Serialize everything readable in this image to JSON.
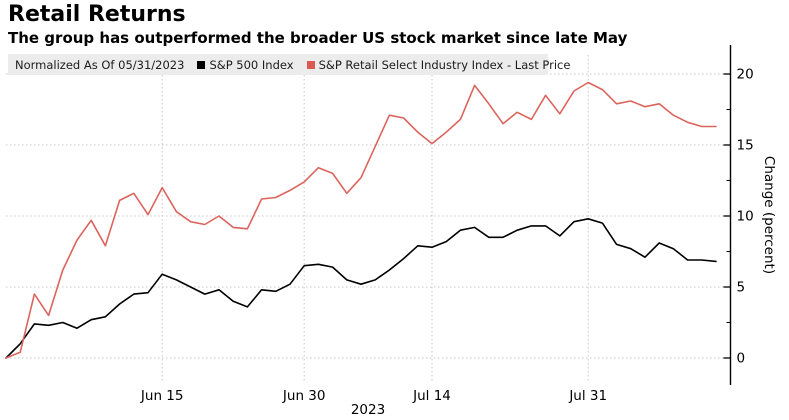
{
  "header": {
    "title": "Retail Returns",
    "subtitle": "The group has outperformed the broader US stock market since late May"
  },
  "legend": {
    "note": "Normalized As Of 05/31/2023",
    "items": [
      {
        "label": "S&P 500 Index",
        "color": "#000000"
      },
      {
        "label": "S&P Retail Select Industry Index - Last Price",
        "color": "#dc5a54"
      }
    ]
  },
  "chart_data": {
    "type": "line",
    "x": [
      "05/31",
      "06/01",
      "06/02",
      "06/05",
      "06/06",
      "06/07",
      "06/08",
      "06/09",
      "06/12",
      "06/13",
      "06/14",
      "06/15",
      "06/16",
      "06/20",
      "06/21",
      "06/22",
      "06/23",
      "06/26",
      "06/27",
      "06/28",
      "06/29",
      "06/30",
      "07/03",
      "07/05",
      "07/06",
      "07/07",
      "07/10",
      "07/11",
      "07/12",
      "07/13",
      "07/14",
      "07/17",
      "07/18",
      "07/19",
      "07/20",
      "07/21",
      "07/24",
      "07/25",
      "07/26",
      "07/27",
      "07/28",
      "07/31",
      "08/01",
      "08/02",
      "08/03",
      "08/04",
      "08/07",
      "08/08",
      "08/09",
      "08/10",
      "08/11"
    ],
    "series": [
      {
        "name": "S&P 500 Index",
        "color": "#000000",
        "values": [
          0.0,
          1.0,
          2.4,
          2.3,
          2.5,
          2.1,
          2.7,
          2.9,
          3.8,
          4.5,
          4.6,
          5.9,
          5.5,
          5.0,
          4.5,
          4.8,
          4.0,
          3.6,
          4.8,
          4.7,
          5.2,
          6.5,
          6.6,
          6.4,
          5.5,
          5.2,
          5.5,
          6.2,
          7.0,
          7.9,
          7.8,
          8.2,
          9.0,
          9.2,
          8.5,
          8.5,
          9.0,
          9.3,
          9.3,
          8.6,
          9.6,
          9.8,
          9.5,
          8.0,
          7.7,
          7.1,
          8.1,
          7.7,
          6.9,
          6.9,
          6.8
        ]
      },
      {
        "name": "S&P Retail Select Industry Index - Last Price",
        "color": "#dc645d",
        "values": [
          0.0,
          0.4,
          4.5,
          3.0,
          6.2,
          8.3,
          9.7,
          7.9,
          11.1,
          11.6,
          10.1,
          12.0,
          10.3,
          9.6,
          9.4,
          10.0,
          9.2,
          9.1,
          11.2,
          11.3,
          11.8,
          12.4,
          13.4,
          13.0,
          11.6,
          12.7,
          14.9,
          17.1,
          16.9,
          15.9,
          15.1,
          15.9,
          16.8,
          19.2,
          17.9,
          16.5,
          17.3,
          16.8,
          18.5,
          17.2,
          18.8,
          19.4,
          18.9,
          17.9,
          18.1,
          17.7,
          17.9,
          17.1,
          16.6,
          16.3,
          16.3
        ]
      }
    ],
    "title": "Retail Returns",
    "xlabel": "",
    "ylabel": "Change (percent)",
    "ylim": [
      -2,
      21
    ],
    "yticks": [
      "0",
      "5",
      "10",
      "15",
      "20"
    ],
    "ytick_values": [
      0,
      5,
      10,
      15,
      20
    ],
    "ytick_minor_values": [
      2.5,
      7.5,
      12.5,
      17.5
    ],
    "xticks": [
      {
        "index": 11,
        "label": "Jun 15"
      },
      {
        "index": 21,
        "label": "Jun 30"
      },
      {
        "index": 30,
        "label": "Jul 14"
      },
      {
        "index": 41,
        "label": "Jul 31"
      }
    ],
    "year_label": "2023",
    "grid": "dotted",
    "legend_position": "top"
  }
}
